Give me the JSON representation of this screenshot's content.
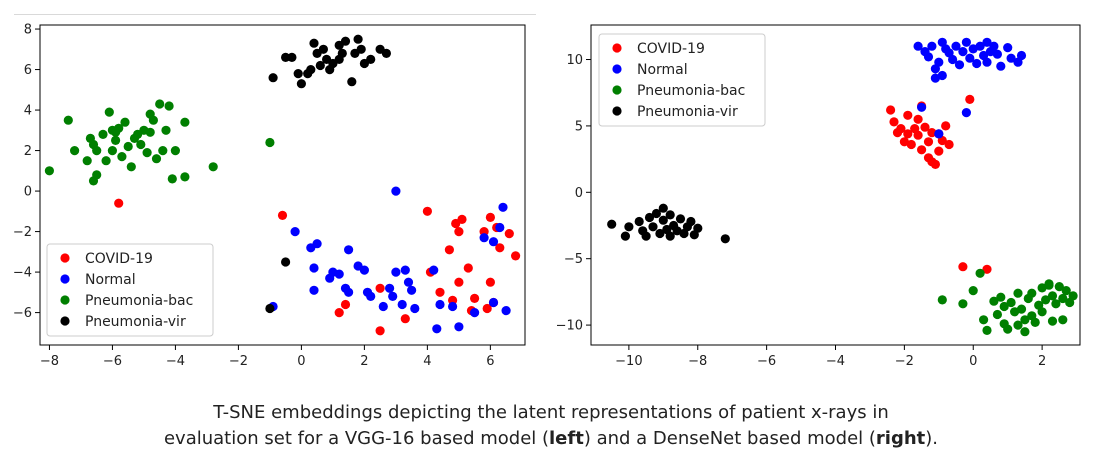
{
  "chart_data": [
    {
      "type": "scatter",
      "xlim": [
        -8.3,
        7.1
      ],
      "ylim": [
        -7.6,
        8.2
      ],
      "xticks": [
        -8,
        -6,
        -4,
        -2,
        0,
        2,
        4,
        6
      ],
      "yticks": [
        -6,
        -4,
        -2,
        0,
        2,
        4,
        6,
        8
      ],
      "grid": false,
      "legend_position": "lower-left",
      "series": [
        {
          "name": "COVID-19",
          "color": "#ff0000",
          "points": [
            [
              -5.8,
              -0.6
            ],
            [
              -0.6,
              -1.2
            ],
            [
              1.2,
              -6.0
            ],
            [
              1.4,
              -5.6
            ],
            [
              2.5,
              -4.8
            ],
            [
              2.5,
              -6.9
            ],
            [
              3.3,
              -6.3
            ],
            [
              4.0,
              -1.0
            ],
            [
              4.1,
              -4.0
            ],
            [
              4.4,
              -5.0
            ],
            [
              4.7,
              -2.9
            ],
            [
              4.8,
              -5.4
            ],
            [
              4.9,
              -1.6
            ],
            [
              5.0,
              -2.0
            ],
            [
              5.0,
              -4.5
            ],
            [
              5.1,
              -1.4
            ],
            [
              5.3,
              -3.8
            ],
            [
              5.4,
              -5.9
            ],
            [
              5.5,
              -5.3
            ],
            [
              5.8,
              -2.0
            ],
            [
              5.9,
              -5.8
            ],
            [
              6.0,
              -1.3
            ],
            [
              6.0,
              -4.5
            ],
            [
              6.1,
              -5.5
            ],
            [
              6.2,
              -1.8
            ],
            [
              6.3,
              -2.8
            ],
            [
              6.6,
              -2.1
            ],
            [
              6.8,
              -3.2
            ]
          ]
        },
        {
          "name": "Normal",
          "color": "#0000ff",
          "points": [
            [
              -0.9,
              -5.7
            ],
            [
              -0.2,
              -2.0
            ],
            [
              0.3,
              -2.8
            ],
            [
              0.4,
              -3.8
            ],
            [
              0.4,
              -4.9
            ],
            [
              0.5,
              -2.6
            ],
            [
              0.9,
              -4.3
            ],
            [
              1.0,
              -4.0
            ],
            [
              1.2,
              -4.1
            ],
            [
              1.4,
              -4.8
            ],
            [
              1.5,
              -2.9
            ],
            [
              1.5,
              -5.0
            ],
            [
              1.8,
              -3.7
            ],
            [
              2.0,
              -3.9
            ],
            [
              2.1,
              -5.0
            ],
            [
              2.2,
              -5.2
            ],
            [
              2.6,
              -5.7
            ],
            [
              2.8,
              -4.8
            ],
            [
              2.9,
              -5.2
            ],
            [
              3.0,
              0.0
            ],
            [
              3.0,
              -4.0
            ],
            [
              3.2,
              -5.6
            ],
            [
              3.3,
              -3.9
            ],
            [
              3.4,
              -4.5
            ],
            [
              3.5,
              -4.9
            ],
            [
              3.6,
              -5.8
            ],
            [
              4.2,
              -3.9
            ],
            [
              4.3,
              -6.8
            ],
            [
              4.4,
              -5.6
            ],
            [
              4.8,
              -5.7
            ],
            [
              5.0,
              -6.7
            ],
            [
              5.8,
              -2.3
            ],
            [
              6.1,
              -5.5
            ],
            [
              6.1,
              -2.5
            ],
            [
              6.3,
              -1.8
            ],
            [
              6.4,
              -0.8
            ],
            [
              6.5,
              -5.9
            ],
            [
              5.5,
              -6.0
            ]
          ]
        },
        {
          "name": "Pneumonia-bac",
          "color": "#007f00",
          "points": [
            [
              -8.0,
              1.0
            ],
            [
              -7.4,
              3.5
            ],
            [
              -7.2,
              2.0
            ],
            [
              -6.8,
              1.5
            ],
            [
              -6.6,
              0.5
            ],
            [
              -6.5,
              2.0
            ],
            [
              -6.6,
              2.3
            ],
            [
              -6.5,
              0.8
            ],
            [
              -6.3,
              2.8
            ],
            [
              -6.2,
              1.5
            ],
            [
              -6.0,
              3.0
            ],
            [
              -6.0,
              2.0
            ],
            [
              -5.9,
              2.5
            ],
            [
              -5.7,
              1.7
            ],
            [
              -5.6,
              3.4
            ],
            [
              -5.5,
              2.2
            ],
            [
              -5.4,
              1.2
            ],
            [
              -5.3,
              2.6
            ],
            [
              -5.1,
              2.3
            ],
            [
              -5.0,
              3.0
            ],
            [
              -4.9,
              1.9
            ],
            [
              -4.8,
              2.9
            ],
            [
              -4.7,
              3.5
            ],
            [
              -4.6,
              1.6
            ],
            [
              -4.5,
              4.3
            ],
            [
              -4.4,
              2.0
            ],
            [
              -4.3,
              3.0
            ],
            [
              -4.2,
              4.2
            ],
            [
              -4.1,
              0.6
            ],
            [
              -4.0,
              2.0
            ],
            [
              -3.7,
              3.4
            ],
            [
              -3.7,
              0.7
            ],
            [
              -2.8,
              1.2
            ],
            [
              -1.0,
              2.4
            ],
            [
              -6.1,
              3.9
            ],
            [
              -5.8,
              3.1
            ],
            [
              -5.2,
              2.8
            ],
            [
              -6.7,
              2.6
            ],
            [
              -4.8,
              3.8
            ],
            [
              -5.9,
              2.9
            ]
          ]
        },
        {
          "name": "Pneumonia-vir",
          "color": "#000000",
          "points": [
            [
              -1.0,
              -5.8
            ],
            [
              -0.5,
              -3.5
            ],
            [
              -0.9,
              5.6
            ],
            [
              -0.5,
              6.6
            ],
            [
              -0.3,
              6.6
            ],
            [
              -0.1,
              5.8
            ],
            [
              0.0,
              5.3
            ],
            [
              0.2,
              5.8
            ],
            [
              0.4,
              7.3
            ],
            [
              0.5,
              6.8
            ],
            [
              0.6,
              6.2
            ],
            [
              0.7,
              7.0
            ],
            [
              0.8,
              6.5
            ],
            [
              0.9,
              6.0
            ],
            [
              1.0,
              6.3
            ],
            [
              1.2,
              7.2
            ],
            [
              1.3,
              6.8
            ],
            [
              1.4,
              7.4
            ],
            [
              1.6,
              5.4
            ],
            [
              1.7,
              6.8
            ],
            [
              1.8,
              7.5
            ],
            [
              1.9,
              7.0
            ],
            [
              2.0,
              6.3
            ],
            [
              2.2,
              6.5
            ],
            [
              2.5,
              7.0
            ],
            [
              2.7,
              6.8
            ],
            [
              0.3,
              6.0
            ],
            [
              1.2,
              6.5
            ]
          ]
        }
      ]
    },
    {
      "type": "scatter",
      "xlim": [
        -11.1,
        3.1
      ],
      "ylim": [
        -11.5,
        12.6
      ],
      "xticks": [
        -10,
        -8,
        -6,
        -4,
        -2,
        0,
        2
      ],
      "yticks": [
        -10,
        -5,
        0,
        5,
        10
      ],
      "grid": false,
      "legend_position": "top-left",
      "series": [
        {
          "name": "COVID-19",
          "color": "#ff0000",
          "points": [
            [
              -2.4,
              6.2
            ],
            [
              -2.3,
              5.3
            ],
            [
              -2.2,
              4.5
            ],
            [
              -2.1,
              4.8
            ],
            [
              -2.0,
              3.8
            ],
            [
              -1.9,
              5.8
            ],
            [
              -1.9,
              4.4
            ],
            [
              -1.8,
              3.6
            ],
            [
              -1.7,
              4.8
            ],
            [
              -1.6,
              5.5
            ],
            [
              -1.6,
              4.3
            ],
            [
              -1.5,
              3.2
            ],
            [
              -1.4,
              4.9
            ],
            [
              -1.3,
              2.6
            ],
            [
              -1.3,
              3.8
            ],
            [
              -1.2,
              4.5
            ],
            [
              -1.2,
              2.3
            ],
            [
              -1.1,
              2.1
            ],
            [
              -1.0,
              3.1
            ],
            [
              -1.0,
              4.4
            ],
            [
              -0.9,
              3.9
            ],
            [
              -0.8,
              5.0
            ],
            [
              -0.7,
              3.6
            ],
            [
              -0.1,
              7.0
            ],
            [
              -0.3,
              -5.6
            ],
            [
              0.4,
              -5.8
            ],
            [
              -1.5,
              6.5
            ]
          ]
        },
        {
          "name": "Normal",
          "color": "#0000ff",
          "points": [
            [
              -1.6,
              11.0
            ],
            [
              -1.5,
              6.4
            ],
            [
              -1.4,
              10.6
            ],
            [
              -1.3,
              10.2
            ],
            [
              -1.2,
              11.0
            ],
            [
              -1.1,
              9.3
            ],
            [
              -1.1,
              8.6
            ],
            [
              -1.0,
              9.8
            ],
            [
              -0.9,
              11.3
            ],
            [
              -0.8,
              10.8
            ],
            [
              -0.7,
              10.5
            ],
            [
              -0.6,
              10.0
            ],
            [
              -0.5,
              11.0
            ],
            [
              -0.4,
              9.6
            ],
            [
              -0.3,
              10.6
            ],
            [
              -0.2,
              11.3
            ],
            [
              -0.1,
              10.1
            ],
            [
              0.0,
              10.8
            ],
            [
              0.1,
              9.7
            ],
            [
              0.2,
              11.0
            ],
            [
              0.3,
              10.3
            ],
            [
              0.4,
              9.8
            ],
            [
              0.5,
              10.6
            ],
            [
              0.6,
              11.0
            ],
            [
              0.7,
              10.4
            ],
            [
              0.8,
              9.5
            ],
            [
              1.0,
              10.9
            ],
            [
              1.1,
              10.1
            ],
            [
              1.3,
              9.8
            ],
            [
              1.4,
              10.3
            ],
            [
              -1.0,
              4.4
            ],
            [
              -0.2,
              6.0
            ],
            [
              -0.9,
              8.8
            ],
            [
              0.4,
              11.3
            ]
          ]
        },
        {
          "name": "Pneumonia-bac",
          "color": "#007f00",
          "points": [
            [
              -0.9,
              -8.1
            ],
            [
              -0.3,
              -8.4
            ],
            [
              0.0,
              -7.4
            ],
            [
              0.2,
              -6.1
            ],
            [
              0.3,
              -9.6
            ],
            [
              0.4,
              -10.4
            ],
            [
              0.6,
              -8.2
            ],
            [
              0.7,
              -9.2
            ],
            [
              0.8,
              -7.9
            ],
            [
              0.9,
              -8.6
            ],
            [
              0.9,
              -9.9
            ],
            [
              1.0,
              -10.3
            ],
            [
              1.1,
              -8.3
            ],
            [
              1.2,
              -9.0
            ],
            [
              1.3,
              -7.6
            ],
            [
              1.3,
              -10.0
            ],
            [
              1.4,
              -8.8
            ],
            [
              1.5,
              -9.6
            ],
            [
              1.5,
              -10.5
            ],
            [
              1.6,
              -8.0
            ],
            [
              1.7,
              -9.3
            ],
            [
              1.8,
              -9.8
            ],
            [
              1.9,
              -8.5
            ],
            [
              2.0,
              -7.2
            ],
            [
              2.0,
              -9.0
            ],
            [
              2.1,
              -8.1
            ],
            [
              2.2,
              -6.9
            ],
            [
              2.3,
              -7.8
            ],
            [
              2.3,
              -9.7
            ],
            [
              2.4,
              -8.4
            ],
            [
              2.5,
              -7.1
            ],
            [
              2.6,
              -8.0
            ],
            [
              2.6,
              -9.6
            ],
            [
              2.7,
              -7.4
            ],
            [
              2.8,
              -8.3
            ],
            [
              2.9,
              -7.8
            ],
            [
              2.2,
              -7.0
            ],
            [
              1.7,
              -7.6
            ]
          ]
        },
        {
          "name": "Pneumonia-vir",
          "color": "#000000",
          "points": [
            [
              -10.5,
              -2.4
            ],
            [
              -10.1,
              -3.3
            ],
            [
              -10.0,
              -2.6
            ],
            [
              -9.7,
              -2.2
            ],
            [
              -9.6,
              -2.9
            ],
            [
              -9.4,
              -1.9
            ],
            [
              -9.3,
              -2.6
            ],
            [
              -9.2,
              -1.6
            ],
            [
              -9.1,
              -3.1
            ],
            [
              -9.0,
              -2.1
            ],
            [
              -9.0,
              -1.2
            ],
            [
              -8.9,
              -2.8
            ],
            [
              -8.8,
              -3.3
            ],
            [
              -8.7,
              -2.5
            ],
            [
              -8.6,
              -2.9
            ],
            [
              -8.5,
              -2.0
            ],
            [
              -8.4,
              -3.1
            ],
            [
              -8.3,
              -2.6
            ],
            [
              -8.2,
              -2.2
            ],
            [
              -8.1,
              -3.2
            ],
            [
              -8.0,
              -2.7
            ],
            [
              -7.2,
              -3.5
            ],
            [
              -8.8,
              -1.7
            ],
            [
              -9.5,
              -3.3
            ]
          ]
        }
      ]
    }
  ],
  "caption": {
    "line1": "T-SNE embeddings depicting the latent representations of patient x-rays in",
    "line2_a": "evaluation set for a VGG-16 based model (",
    "left_word": "left",
    "line2_b": ") and a DenseNet based model (",
    "right_word": "right",
    "line2_c": ")."
  }
}
